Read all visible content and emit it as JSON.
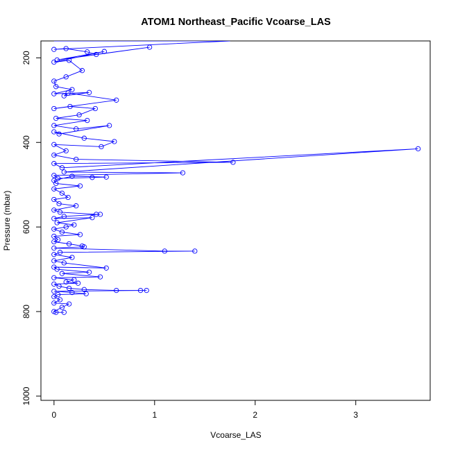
{
  "chart_data": {
    "type": "scatter",
    "title": "ATOM1 Northeast_Pacific Vcoarse_LAS",
    "xlabel": "Vcoarse_LAS",
    "ylabel": "Pressure (mbar)",
    "xlim": [
      -0.13,
      3.74
    ],
    "ylim": [
      1010,
      160
    ],
    "y_reversed": true,
    "x_ticks": [
      0,
      1,
      2,
      3
    ],
    "y_ticks": [
      200,
      400,
      600,
      800,
      1000
    ],
    "grid": false,
    "legend": "none",
    "series_color": "#0000ff",
    "marker": "open-circle",
    "connected_lines": true,
    "series": [
      {
        "points": [
          [
            0,
            160
          ],
          [
            0.6,
            160
          ],
          [
            1.75,
            160
          ],
          [
            0,
            180
          ],
          [
            0.12,
            178
          ],
          [
            0.33,
            186
          ],
          [
            0.42,
            192
          ],
          [
            0.95,
            175
          ],
          [
            0.03,
            205
          ],
          [
            0.5,
            185
          ],
          [
            0,
            210
          ],
          [
            0.15,
            206
          ],
          [
            0.28,
            230
          ],
          [
            0.12,
            245
          ],
          [
            0,
            255
          ],
          [
            0.02,
            268
          ],
          [
            0.18,
            275
          ],
          [
            0,
            285
          ],
          [
            0.35,
            282
          ],
          [
            0.1,
            290
          ],
          [
            0.14,
            283
          ],
          [
            0.62,
            300
          ],
          [
            0,
            320
          ],
          [
            0.16,
            315
          ],
          [
            0.41,
            320
          ],
          [
            0.25,
            335
          ],
          [
            0.02,
            343
          ],
          [
            0.33,
            348
          ],
          [
            0,
            360
          ],
          [
            0.22,
            368
          ],
          [
            0.55,
            360
          ],
          [
            0.05,
            380
          ],
          [
            0,
            375
          ],
          [
            0.3,
            390
          ],
          [
            0.6,
            398
          ],
          [
            0.47,
            410
          ],
          [
            0,
            405
          ],
          [
            0.12,
            420
          ],
          [
            0,
            430
          ],
          [
            0.22,
            440
          ],
          [
            1.78,
            447
          ],
          [
            0,
            450
          ],
          [
            0.08,
            460
          ],
          [
            3.62,
            415
          ],
          [
            0.1,
            470
          ],
          [
            1.28,
            472
          ],
          [
            0,
            478
          ],
          [
            0.04,
            485
          ],
          [
            0.38,
            483
          ],
          [
            0.52,
            482
          ],
          [
            0.18,
            480
          ],
          [
            0,
            490
          ],
          [
            0.02,
            497
          ],
          [
            0.26,
            503
          ],
          [
            0,
            510
          ],
          [
            0.08,
            520
          ],
          [
            0.14,
            530
          ],
          [
            0,
            535
          ],
          [
            0.05,
            545
          ],
          [
            0.22,
            550
          ],
          [
            0,
            560
          ],
          [
            0.06,
            565
          ],
          [
            0.42,
            570
          ],
          [
            0.46,
            570
          ],
          [
            0.1,
            575
          ],
          [
            0,
            580
          ],
          [
            0.38,
            578
          ],
          [
            0.03,
            590
          ],
          [
            0.2,
            595
          ],
          [
            0.12,
            600
          ],
          [
            0,
            605
          ],
          [
            0.08,
            612
          ],
          [
            0.26,
            618
          ],
          [
            0,
            622
          ],
          [
            0.04,
            630
          ],
          [
            0,
            635
          ],
          [
            0.15,
            640
          ],
          [
            0.28,
            645
          ],
          [
            0.3,
            647
          ],
          [
            0,
            650
          ],
          [
            1.1,
            657
          ],
          [
            1.4,
            657
          ],
          [
            0.06,
            660
          ],
          [
            0,
            665
          ],
          [
            0.18,
            672
          ],
          [
            0,
            680
          ],
          [
            0.1,
            685
          ],
          [
            0.52,
            697
          ],
          [
            0,
            695
          ],
          [
            0.03,
            700
          ],
          [
            0.35,
            707
          ],
          [
            0.08,
            710
          ],
          [
            0.46,
            718
          ],
          [
            0,
            720
          ],
          [
            0.2,
            725
          ],
          [
            0.12,
            730
          ],
          [
            0.24,
            733
          ],
          [
            0,
            735
          ],
          [
            0.05,
            740
          ],
          [
            0.15,
            745
          ],
          [
            0.3,
            748
          ],
          [
            0.62,
            750
          ],
          [
            0.86,
            750
          ],
          [
            0.92,
            750
          ],
          [
            0,
            752
          ],
          [
            0.18,
            755
          ],
          [
            0.32,
            758
          ],
          [
            0.04,
            760
          ],
          [
            0,
            765
          ],
          [
            0.06,
            772
          ],
          [
            0,
            780
          ],
          [
            0.15,
            782
          ],
          [
            0.08,
            790
          ],
          [
            0,
            800
          ],
          [
            0.02,
            802
          ],
          [
            0.1,
            802
          ]
        ]
      }
    ]
  }
}
